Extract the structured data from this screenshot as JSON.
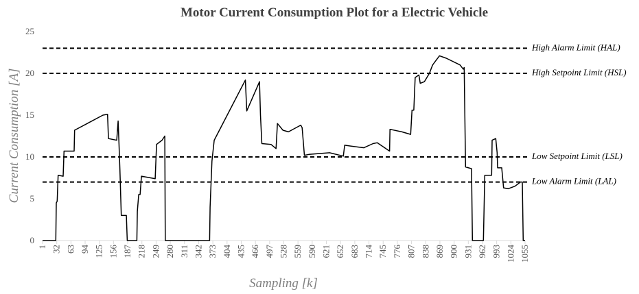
{
  "chart_data": {
    "type": "line",
    "title": "Motor Current Consumption Plot for a Electric Vehicle",
    "x_label": "Sampling [k]",
    "y_label": "Current Consumption [A]",
    "xlim": [
      1,
      1055
    ],
    "xticks": [
      1,
      32,
      63,
      94,
      125,
      156,
      187,
      218,
      249,
      280,
      311,
      342,
      373,
      404,
      435,
      466,
      497,
      528,
      559,
      590,
      621,
      652,
      683,
      714,
      745,
      776,
      807,
      838,
      869,
      900,
      931,
      962,
      993,
      1024,
      1055
    ],
    "ylim": [
      0,
      25
    ],
    "yticks": [
      0,
      5,
      10,
      15,
      20,
      25
    ],
    "grid": false,
    "series": [
      {
        "color": "#000000",
        "x": [
          1,
          30,
          31,
          33,
          35,
          46,
          48,
          70,
          71,
          133,
          143,
          145,
          163,
          166,
          168,
          170,
          173,
          184,
          186,
          207,
          208,
          211,
          214,
          217,
          247,
          250,
          262,
          268,
          269,
          366,
          367,
          371,
          376,
          444,
          447,
          475,
          477,
          480,
          500,
          511,
          514,
          526,
          538,
          565,
          568,
          573,
          583,
          628,
          658,
          661,
          688,
          703,
          723,
          732,
          759,
          760,
          786,
          805,
          808,
          812,
          815,
          823,
          826,
          835,
          846,
          853,
          868,
          883,
          913,
          920,
          922,
          925,
          938,
          940,
          964,
          967,
          982,
          983,
          991,
          994,
          995,
          1004,
          1008,
          1018,
          1033,
          1045,
          1049,
          1051,
          1055
        ],
        "values": [
          0,
          0,
          4.5,
          4.7,
          7.8,
          7.7,
          10.7,
          10.7,
          13.2,
          15,
          15.1,
          12.2,
          12,
          14.3,
          11.5,
          8.5,
          3,
          3,
          0,
          0,
          3.5,
          5.5,
          5.5,
          7.7,
          7.4,
          11.5,
          12,
          12.5,
          0,
          0,
          4,
          9.5,
          12,
          19.2,
          15.5,
          19,
          15,
          11.6,
          11.5,
          11,
          14,
          13.2,
          13,
          13.8,
          13.5,
          10.2,
          10.3,
          10.5,
          10.1,
          11.4,
          11.2,
          11.1,
          11.6,
          11.7,
          10.7,
          13.3,
          13,
          12.7,
          15.6,
          15.6,
          19.5,
          19.8,
          18.8,
          19,
          20,
          21,
          22.1,
          21.8,
          21,
          20.5,
          20.7,
          8.8,
          8.6,
          0,
          0,
          7.8,
          7.8,
          12,
          12.2,
          10.5,
          8.7,
          8.7,
          6.3,
          6.2,
          6.5,
          7,
          7,
          0,
          0
        ]
      }
    ],
    "reference_lines": [
      {
        "value": 23,
        "label": "High Alarm Limit (HAL)"
      },
      {
        "value": 20,
        "label": "High Setpoint Limit (HSL)"
      },
      {
        "value": 10,
        "label": "Low Setpoint  Limit (LSL)"
      },
      {
        "value": 7,
        "label": "Low Alarm  Limit (LAL)"
      }
    ]
  }
}
